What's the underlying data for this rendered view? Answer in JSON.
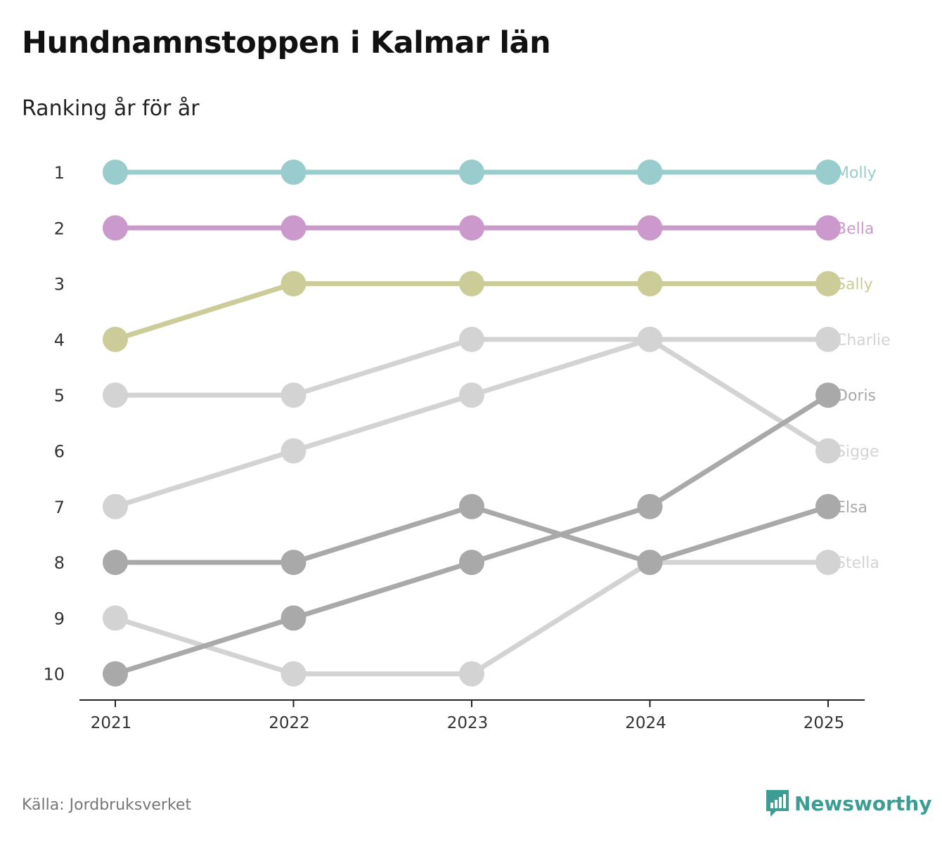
{
  "title": "Hundnamnstoppen i Kalmar län",
  "subtitle": "Ranking år för år",
  "source": "Källa: Jordbruksverket",
  "brand": "Newsworthy",
  "colors": {
    "brand": "#3d9d95",
    "axis": "#222222",
    "tick_label": "#333333"
  },
  "chart_data": {
    "type": "line",
    "title": "Hundnamnstoppen i Kalmar län",
    "subtitle": "Ranking år för år",
    "xlabel": "",
    "ylabel": "",
    "x": [
      "2021",
      "2022",
      "2023",
      "2024",
      "2025"
    ],
    "ylim": [
      1,
      10
    ],
    "y_inverted": true,
    "y_ticks": [
      "1",
      "2",
      "3",
      "4",
      "5",
      "6",
      "7",
      "8",
      "9",
      "10"
    ],
    "series": [
      {
        "name": "Stella",
        "values": [
          9,
          10,
          10,
          8,
          8
        ],
        "color": "#d3d3d3"
      },
      {
        "name": "Charlie",
        "values": [
          5,
          5,
          4,
          4,
          4
        ],
        "color": "#d3d3d3"
      },
      {
        "name": "Sigge",
        "values": [
          7,
          6,
          5,
          4,
          6
        ],
        "color": "#d3d3d3"
      },
      {
        "name": "Elsa",
        "values": [
          8,
          8,
          7,
          8,
          7
        ],
        "color": "#a9a9a9"
      },
      {
        "name": "Doris",
        "values": [
          10,
          9,
          8,
          7,
          5
        ],
        "color": "#a9a9a9"
      },
      {
        "name": "Sally",
        "values": [
          4,
          3,
          3,
          3,
          3
        ],
        "color": "#cccc99"
      },
      {
        "name": "Bella",
        "values": [
          2,
          2,
          2,
          2,
          2
        ],
        "color": "#cc99cc"
      },
      {
        "name": "Molly",
        "values": [
          1,
          1,
          1,
          1,
          1
        ],
        "color": "#99cccc"
      }
    ]
  }
}
